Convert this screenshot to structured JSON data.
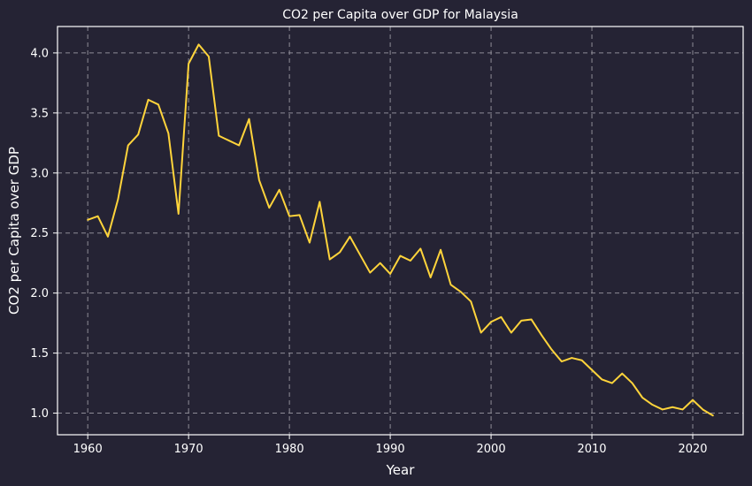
{
  "chart_data": {
    "type": "line",
    "title": "CO2 per Capita over GDP for Malaysia",
    "xlabel": "Year",
    "ylabel": "CO2 per Capita over GDP",
    "xlim": [
      1957,
      2025
    ],
    "ylim": [
      0.82,
      4.22
    ],
    "x_ticks": [
      1960,
      1970,
      1980,
      1990,
      2000,
      2010,
      2020
    ],
    "y_ticks": [
      1.0,
      1.5,
      2.0,
      2.5,
      3.0,
      3.5,
      4.0
    ],
    "grid": true,
    "series": [
      {
        "color": "#ffd43b",
        "x": [
          1960,
          1961,
          1962,
          1963,
          1964,
          1965,
          1966,
          1967,
          1968,
          1969,
          1970,
          1971,
          1972,
          1973,
          1974,
          1975,
          1976,
          1977,
          1978,
          1979,
          1980,
          1981,
          1982,
          1983,
          1984,
          1985,
          1986,
          1987,
          1988,
          1989,
          1990,
          1991,
          1992,
          1993,
          1994,
          1995,
          1996,
          1997,
          1998,
          1999,
          2000,
          2001,
          2002,
          2003,
          2004,
          2005,
          2006,
          2007,
          2008,
          2009,
          2010,
          2011,
          2012,
          2013,
          2014,
          2015,
          2016,
          2017,
          2018,
          2019,
          2020,
          2021,
          2022
        ],
        "y": [
          2.61,
          2.64,
          2.47,
          2.78,
          3.23,
          3.32,
          3.61,
          3.57,
          3.33,
          2.66,
          3.91,
          4.07,
          3.97,
          3.31,
          3.27,
          3.23,
          3.45,
          2.94,
          2.71,
          2.86,
          2.64,
          2.65,
          2.42,
          2.76,
          2.28,
          2.34,
          2.47,
          2.32,
          2.17,
          2.25,
          2.16,
          2.31,
          2.27,
          2.37,
          2.13,
          2.36,
          2.07,
          2.01,
          1.93,
          1.67,
          1.76,
          1.8,
          1.67,
          1.77,
          1.78,
          1.65,
          1.53,
          1.43,
          1.46,
          1.44,
          1.36,
          1.28,
          1.25,
          1.33,
          1.25,
          1.13,
          1.07,
          1.03,
          1.05,
          1.03,
          1.11,
          1.03,
          0.98
        ]
      }
    ]
  }
}
